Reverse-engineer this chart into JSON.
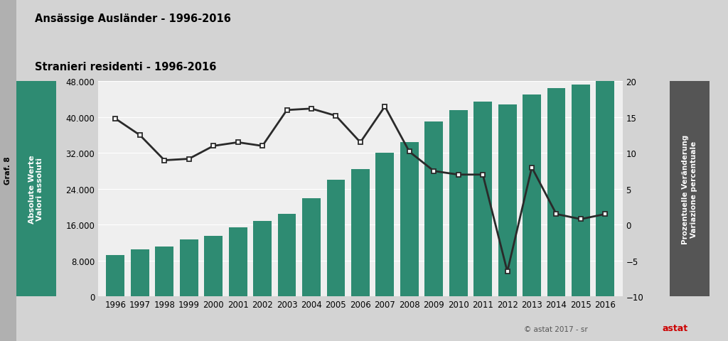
{
  "title1": "Ansässige Ausländer - 1996-2016",
  "title2": "Stranieri residenti - 1996-2016",
  "ylabel_left": "Absolute Werte\nValori assoluti",
  "ylabel_right": "Prozentuelle Veränderung\nVariazione percentuale",
  "graf_label": "Graf. 8",
  "copyright": "© astat 2017 - sr",
  "years": [
    1996,
    1997,
    1998,
    1999,
    2000,
    2001,
    2002,
    2003,
    2004,
    2005,
    2006,
    2007,
    2008,
    2009,
    2010,
    2011,
    2012,
    2013,
    2014,
    2015,
    2016
  ],
  "bar_values": [
    9200,
    10500,
    11200,
    12700,
    13500,
    15500,
    16800,
    18500,
    22000,
    26000,
    28500,
    32000,
    34500,
    39000,
    41500,
    43500,
    42800,
    45000,
    46500,
    47200,
    48500
  ],
  "line_values": [
    14.8,
    12.5,
    9.0,
    9.2,
    11.0,
    11.5,
    11.0,
    16.0,
    16.2,
    15.2,
    11.5,
    16.5,
    10.2,
    7.5,
    7.0,
    7.0,
    -6.5,
    8.0,
    1.5,
    0.8,
    1.5
  ],
  "bar_color": "#2e8b72",
  "line_color": "#2a2a2a",
  "marker_face": "#ffffff",
  "marker_edge": "#2a2a2a",
  "bg_color": "#d3d3d3",
  "plot_bg": "#efefef",
  "left_box_color": "#2e8b72",
  "right_box_color": "#555555",
  "grid_color": "#ffffff",
  "ylim_left": [
    0,
    48000
  ],
  "ylim_right": [
    -10,
    20
  ],
  "yticks_left": [
    0,
    8000,
    16000,
    24000,
    32000,
    40000,
    48000
  ],
  "yticks_right": [
    -10,
    -5,
    0,
    5,
    10,
    15,
    20
  ],
  "figsize": [
    10.24,
    4.81
  ],
  "dpi": 100
}
